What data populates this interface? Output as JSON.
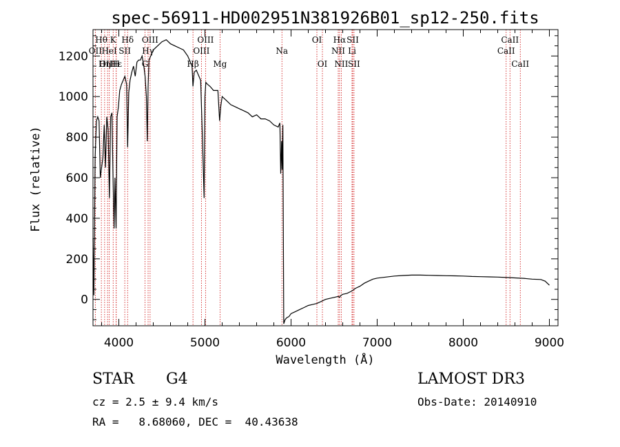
{
  "chart_data": {
    "type": "line",
    "title": "spec-56911-HD002951N381926B01_sp12-250.fits",
    "xlabel": "Wavelength (Å)",
    "ylabel": "Flux (relative)",
    "xlim": [
      3700,
      9100
    ],
    "ylim": [
      -130,
      1330
    ],
    "xticks": [
      4000,
      5000,
      6000,
      7000,
      8000,
      9000
    ],
    "yticks": [
      0,
      200,
      400,
      600,
      800,
      1000,
      1200
    ],
    "series": [
      {
        "name": "flux",
        "x": [
          3700,
          3710,
          3725,
          3740,
          3755,
          3770,
          3785,
          3800,
          3815,
          3830,
          3845,
          3860,
          3875,
          3890,
          3905,
          3920,
          3933,
          3945,
          3955,
          3968,
          3980,
          3995,
          4010,
          4030,
          4050,
          4070,
          4090,
          4102,
          4115,
          4130,
          4150,
          4170,
          4190,
          4210,
          4230,
          4250,
          4270,
          4290,
          4305,
          4320,
          4330,
          4340,
          4350,
          4370,
          4400,
          4450,
          4500,
          4550,
          4600,
          4650,
          4700,
          4750,
          4800,
          4830,
          4850,
          4861,
          4875,
          4900,
          4930,
          4950,
          4970,
          4990,
          5000,
          5010,
          5030,
          5060,
          5100,
          5150,
          5170,
          5183,
          5200,
          5250,
          5300,
          5350,
          5400,
          5450,
          5500,
          5550,
          5600,
          5650,
          5700,
          5750,
          5800,
          5850,
          5870,
          5880,
          5890,
          5896,
          5905,
          5915,
          5930,
          5950,
          5975,
          6000,
          6050,
          6100,
          6150,
          6200,
          6250,
          6300,
          6350,
          6400,
          6450,
          6500,
          6550,
          6563,
          6580,
          6600,
          6650,
          6700,
          6750,
          6800,
          6850,
          6900,
          6950,
          7000,
          7100,
          7200,
          7300,
          7400,
          7500,
          7600,
          7700,
          7800,
          7900,
          8000,
          8100,
          8200,
          8300,
          8400,
          8500,
          8600,
          8700,
          8800,
          8900,
          8950,
          9000
        ],
        "values": [
          300,
          20,
          700,
          880,
          900,
          880,
          600,
          650,
          700,
          860,
          650,
          900,
          840,
          500,
          900,
          920,
          600,
          350,
          600,
          350,
          900,
          950,
          1030,
          1060,
          1080,
          1100,
          1060,
          750,
          1020,
          1080,
          1120,
          1150,
          1100,
          1170,
          1180,
          1180,
          1200,
          1150,
          1100,
          1000,
          780,
          1050,
          1180,
          1200,
          1230,
          1250,
          1270,
          1280,
          1260,
          1250,
          1240,
          1230,
          1200,
          1170,
          1150,
          1050,
          1120,
          1130,
          1100,
          1080,
          800,
          500,
          1000,
          1070,
          1060,
          1050,
          1030,
          1030,
          880,
          950,
          1000,
          980,
          960,
          950,
          940,
          930,
          920,
          900,
          910,
          890,
          890,
          880,
          860,
          850,
          870,
          620,
          780,
          640,
          860,
          -120,
          -100,
          -90,
          -85,
          -70,
          -60,
          -50,
          -40,
          -30,
          -25,
          -20,
          -10,
          0,
          5,
          10,
          15,
          10,
          20,
          25,
          30,
          40,
          55,
          65,
          80,
          90,
          100,
          105,
          110,
          115,
          118,
          120,
          120,
          119,
          118,
          117,
          116,
          115,
          113,
          112,
          111,
          110,
          108,
          106,
          104,
          100,
          98,
          90,
          70
        ]
      }
    ],
    "line_markers": [
      {
        "name": "Hθ",
        "x": 3797,
        "row": 1
      },
      {
        "name": "OII",
        "x": 3727,
        "row": 2
      },
      {
        "name": "OIII",
        "x": 3869,
        "row": 3
      },
      {
        "name": "Hη",
        "x": 3835,
        "row": 3
      },
      {
        "name": "K",
        "x": 3934,
        "row": 1
      },
      {
        "name": "HeI",
        "x": 3889,
        "row": 2
      },
      {
        "name": "SII",
        "x": 4069,
        "row": 2
      },
      {
        "name": "H",
        "x": 3969,
        "row": 3
      },
      {
        "name": "Hε",
        "x": 3970,
        "row": 3
      },
      {
        "name": "Hδ",
        "x": 4102,
        "row": 1
      },
      {
        "name": "OIII",
        "x": 4363,
        "row": 1
      },
      {
        "name": "Hγ",
        "x": 4340,
        "row": 2
      },
      {
        "name": "G",
        "x": 4304,
        "row": 3
      },
      {
        "name": "OIII",
        "x": 5007,
        "row": 1
      },
      {
        "name": "OIII",
        "x": 4959,
        "row": 2
      },
      {
        "name": "Hβ",
        "x": 4861,
        "row": 3
      },
      {
        "name": "Mg",
        "x": 5175,
        "row": 3
      },
      {
        "name": "Na",
        "x": 5894,
        "row": 2
      },
      {
        "name": "OI",
        "x": 6300,
        "row": 1
      },
      {
        "name": "OI",
        "x": 6364,
        "row": 3
      },
      {
        "name": "Hα",
        "x": 6563,
        "row": 1
      },
      {
        "name": "SII",
        "x": 6716,
        "row": 1
      },
      {
        "name": "NII",
        "x": 6548,
        "row": 2
      },
      {
        "name": "Li",
        "x": 6708,
        "row": 2
      },
      {
        "name": "NII",
        "x": 6583,
        "row": 3
      },
      {
        "name": "SII",
        "x": 6731,
        "row": 3
      },
      {
        "name": "CaII",
        "x": 8542,
        "row": 1
      },
      {
        "name": "CaII",
        "x": 8498,
        "row": 2
      },
      {
        "name": "CaII",
        "x": 8662,
        "row": 3
      }
    ],
    "grid": false,
    "legend": "none"
  },
  "info": {
    "object_class": "STAR",
    "subclass": "G4",
    "survey": "LAMOST DR3",
    "redshift": "cz = 2.5 ± 9.4 km/s",
    "obs_date": "Obs-Date: 20140910",
    "coords": "RA =   8.68060, DEC =  40.43638"
  },
  "colors": {
    "line": "#000000",
    "marker": "#cc0000",
    "axes": "#000000"
  }
}
